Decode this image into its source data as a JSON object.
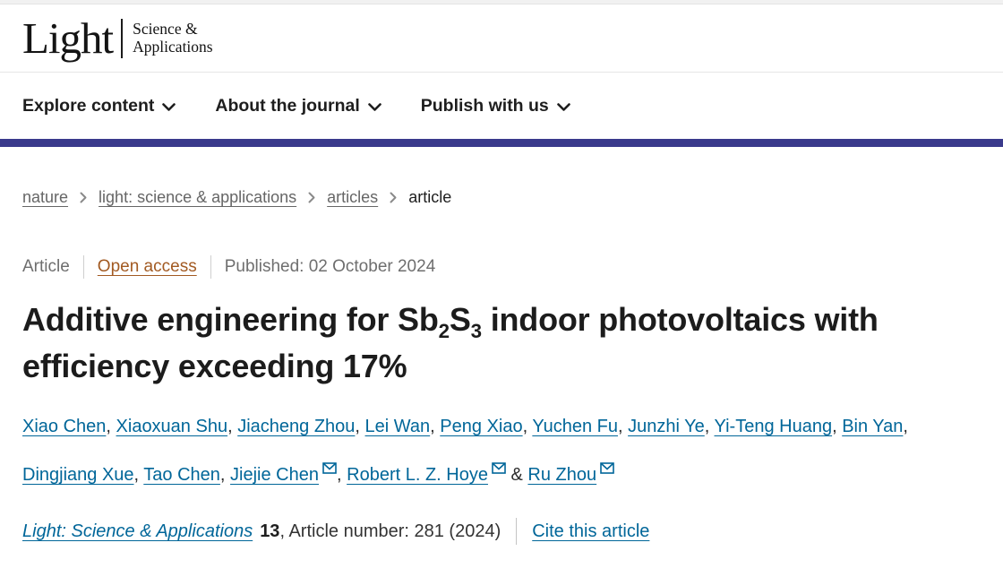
{
  "brand": {
    "name": "Light",
    "tagline_line1": "Science &",
    "tagline_line2": "Applications"
  },
  "nav": {
    "items": [
      {
        "label": "Explore content"
      },
      {
        "label": "About the journal"
      },
      {
        "label": "Publish with us"
      }
    ]
  },
  "breadcrumb": {
    "items": [
      {
        "label": "nature",
        "current": false
      },
      {
        "label": "light: science & applications",
        "current": false
      },
      {
        "label": "articles",
        "current": false
      },
      {
        "label": "article",
        "current": true
      }
    ]
  },
  "meta": {
    "type": "Article",
    "access": "Open access",
    "published": "Published: 02 October 2024"
  },
  "title": {
    "plain": "Additive engineering for Sb2S3 indoor photovoltaics with efficiency exceeding 17%",
    "segments": [
      {
        "text": "Additive engineering for Sb",
        "sub": false
      },
      {
        "text": "2",
        "sub": true
      },
      {
        "text": "S",
        "sub": false
      },
      {
        "text": "3",
        "sub": true
      },
      {
        "text": " indoor photovoltaics with efficiency exceeding 17%",
        "sub": false
      }
    ]
  },
  "authors": {
    "list": [
      {
        "name": "Xiao Chen",
        "email": false
      },
      {
        "name": "Xiaoxuan Shu",
        "email": false
      },
      {
        "name": "Jiacheng Zhou",
        "email": false
      },
      {
        "name": "Lei Wan",
        "email": false
      },
      {
        "name": "Peng Xiao",
        "email": false
      },
      {
        "name": "Yuchen Fu",
        "email": false
      },
      {
        "name": "Junzhi Ye",
        "email": false
      },
      {
        "name": "Yi-Teng Huang",
        "email": false
      },
      {
        "name": "Bin Yan",
        "email": false
      },
      {
        "name": "Dingjiang Xue",
        "email": false
      },
      {
        "name": "Tao Chen",
        "email": false
      },
      {
        "name": "Jiejie Chen",
        "email": true
      },
      {
        "name": "Robert L. Z. Hoye",
        "email": true
      },
      {
        "name": "Ru Zhou",
        "email": true
      }
    ],
    "separator": ", ",
    "last_separator": " & "
  },
  "citation": {
    "journal": "Light: Science & Applications",
    "volume": "13",
    "article_info": ", Article number: 281 (2024)",
    "cite_link": "Cite this article"
  },
  "colors": {
    "link": "#006699",
    "open_access": "#a25a22",
    "brand_bar": "#3a3a8c"
  }
}
